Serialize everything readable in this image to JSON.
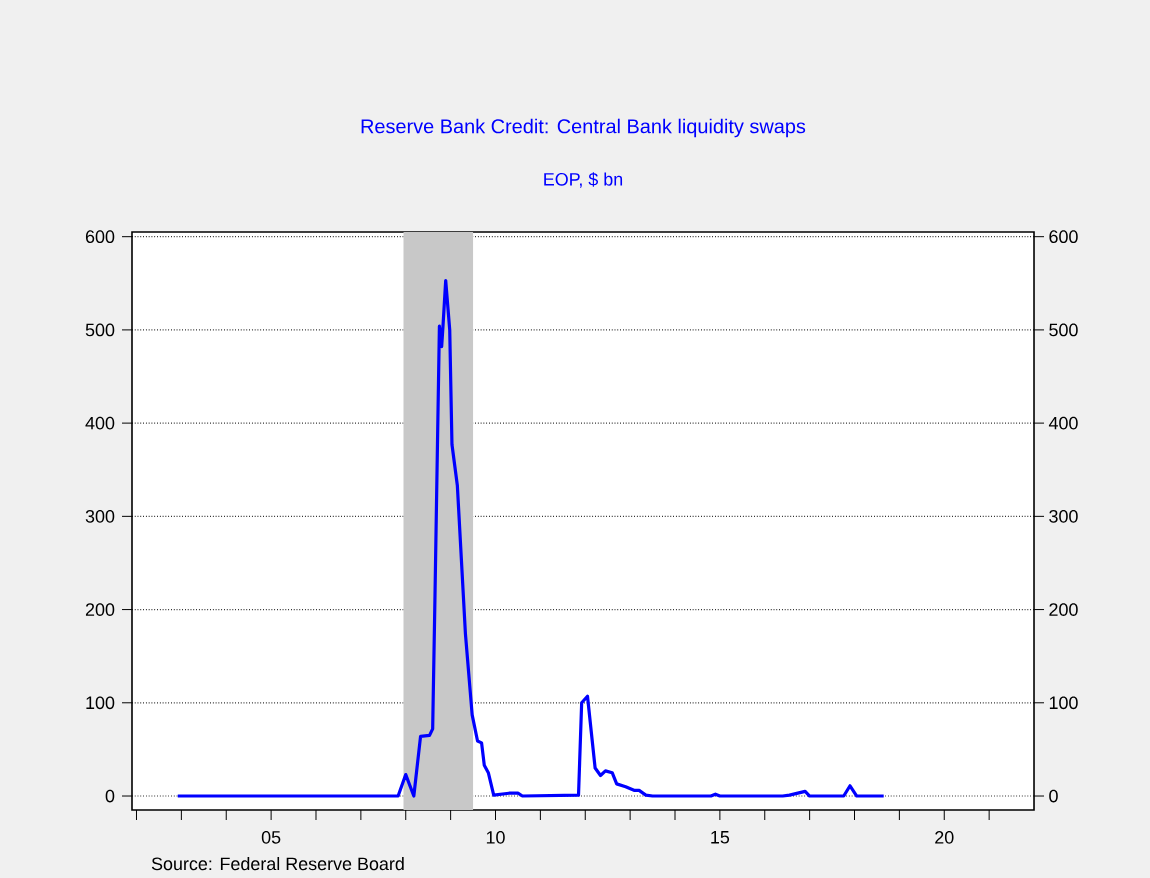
{
  "chart_data": {
    "type": "line",
    "title": "Reserve Bank Credit: Central Bank liquidity swaps",
    "subtitle": "EOP, $ bn",
    "annotations": [
      "Source:  Federal Reserve Board"
    ],
    "x": [
      2002.92,
      2007.83,
      2008.0,
      2008.18,
      2008.33,
      2008.53,
      2008.6,
      2008.65,
      2008.75,
      2008.8,
      2008.83,
      2008.89,
      2008.98,
      2009.03,
      2009.15,
      2009.33,
      2009.48,
      2009.6,
      2009.69,
      2009.75,
      2009.84,
      2009.96,
      2010.3,
      2010.5,
      2010.6,
      2011.85,
      2011.92,
      2012.05,
      2012.22,
      2012.34,
      2012.45,
      2012.6,
      2012.7,
      2012.9,
      2013.1,
      2013.2,
      2013.35,
      2013.5,
      2014.8,
      2014.9,
      2015.0,
      2016.4,
      2016.55,
      2016.9,
      2017.0,
      2017.76,
      2017.9,
      2018.05,
      2018.65
    ],
    "series": [
      {
        "color": "#0000ff",
        "values": [
          0,
          0,
          23,
          0,
          64,
          65,
          72,
          210,
          504,
          482,
          504,
          553,
          500,
          377,
          333,
          174,
          87,
          59,
          57,
          33,
          25,
          1,
          3,
          3,
          0,
          1,
          100,
          107,
          30,
          22,
          27,
          25,
          13,
          10,
          6,
          6,
          1,
          0,
          0,
          2,
          0,
          0,
          1,
          5,
          0,
          0,
          11,
          0,
          0
        ]
      }
    ],
    "xlim": [
      2001.9,
      2022
    ],
    "xticks": [
      {
        "value": 2002,
        "label": null
      },
      {
        "value": 2003,
        "label": null
      },
      {
        "value": 2004,
        "label": null
      },
      {
        "value": 2005,
        "label": "05"
      },
      {
        "value": 2006,
        "label": null
      },
      {
        "value": 2007,
        "label": null
      },
      {
        "value": 2008,
        "label": null
      },
      {
        "value": 2009,
        "label": null
      },
      {
        "value": 2010,
        "label": "10"
      },
      {
        "value": 2011,
        "label": null
      },
      {
        "value": 2012,
        "label": null
      },
      {
        "value": 2013,
        "label": null
      },
      {
        "value": 2014,
        "label": null
      },
      {
        "value": 2015,
        "label": "15"
      },
      {
        "value": 2016,
        "label": null
      },
      {
        "value": 2017,
        "label": null
      },
      {
        "value": 2018,
        "label": null
      },
      {
        "value": 2019,
        "label": null
      },
      {
        "value": 2020,
        "label": "20"
      },
      {
        "value": 2021,
        "label": null
      }
    ],
    "ylim": [
      -15,
      605
    ],
    "yticks": [
      0,
      100,
      200,
      300,
      400,
      500,
      600
    ],
    "y2lim": [
      -15,
      605
    ],
    "y2ticks": [
      0,
      100,
      200,
      300,
      400,
      500,
      600
    ],
    "bands": [
      {
        "axis": "x",
        "from": 2007.95,
        "to": 2009.5,
        "color": "#c8c8c8"
      }
    ],
    "grid": "y",
    "marker": "none",
    "line_style": "solid"
  }
}
